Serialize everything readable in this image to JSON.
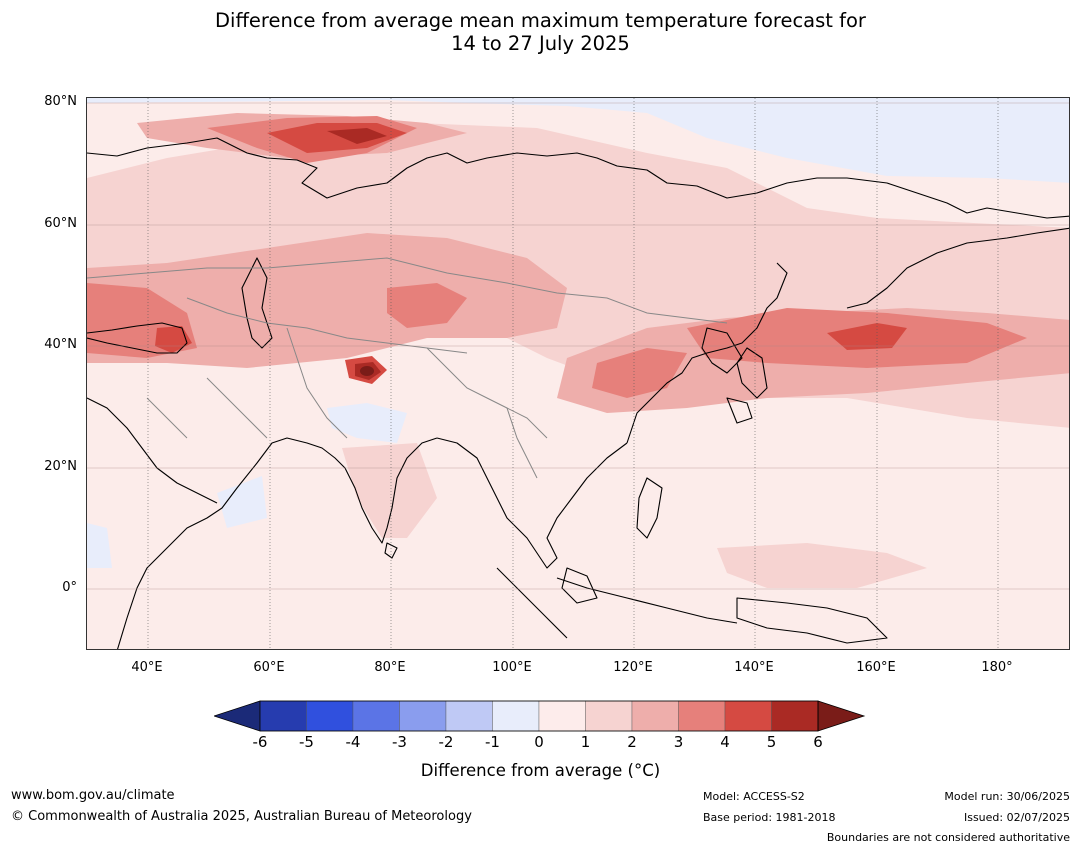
{
  "title": {
    "line1": "Difference from average mean maximum temperature forecast for",
    "line2": "14 to 27 July 2025"
  },
  "map": {
    "lat_labels": [
      "80°N",
      "60°N",
      "40°N",
      "20°N",
      "0°"
    ],
    "lon_labels": [
      "40°E",
      "60°E",
      "80°E",
      "100°E",
      "120°E",
      "140°E",
      "160°E",
      "180°"
    ],
    "lon_range": [
      30,
      192
    ],
    "lat_range": [
      -10,
      81
    ],
    "land_color": "#ffffff",
    "coast_color": "#000000",
    "border_color": "#888888"
  },
  "colorbar": {
    "ticks": [
      "-6",
      "-5",
      "-4",
      "-3",
      "-2",
      "-1",
      "0",
      "1",
      "2",
      "3",
      "4",
      "5",
      "6"
    ],
    "colors": [
      "#1b2a78",
      "#263caf",
      "#3050de",
      "#5b74e6",
      "#8a9dee",
      "#bfc9f5",
      "#e8edfb",
      "#fdeceb",
      "#f6d3d1",
      "#eeaeab",
      "#e6807b",
      "#d54a42",
      "#aa2a24",
      "#7a1c18"
    ],
    "label": "Difference from average (°C)"
  },
  "footer": {
    "website": "www.bom.gov.au/climate",
    "copyright": "© Commonwealth of Australia 2025, Australian Bureau of Meteorology",
    "model": "Model: ACCESS-S2",
    "base_period": "Base period: 1981-2018",
    "model_run": "Model run: 30/06/2025",
    "issued": "Issued: 02/07/2025",
    "disclaimer": "Boundaries are not considered authoritative"
  }
}
